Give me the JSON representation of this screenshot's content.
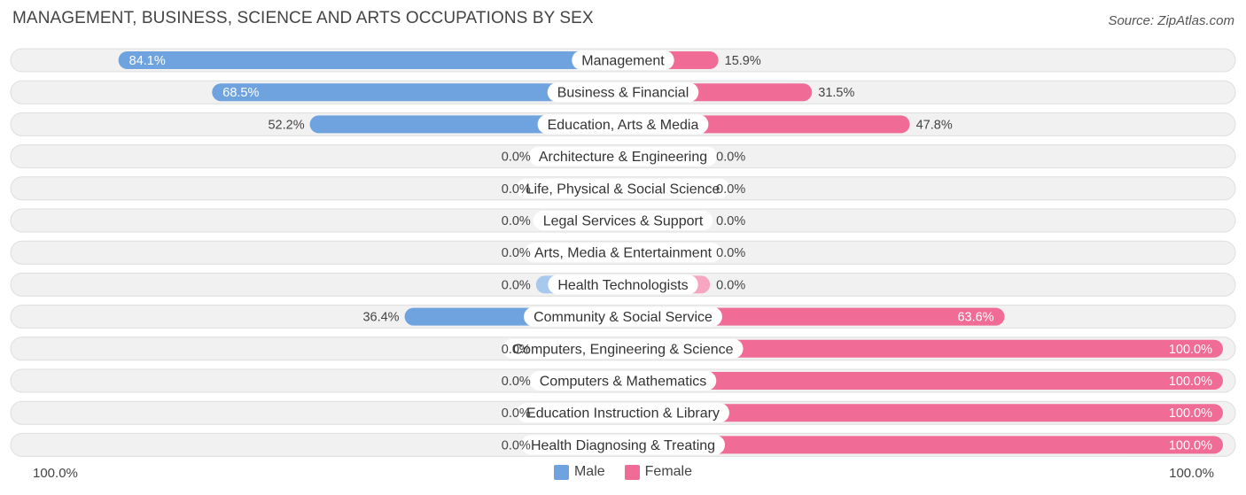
{
  "chart_data": {
    "type": "bar",
    "orientation": "diverging-horizontal",
    "title": "MANAGEMENT, BUSINESS, SCIENCE AND ARTS OCCUPATIONS BY SEX",
    "source": "Source: ZipAtlas.com",
    "categories": [
      "Management",
      "Business & Financial",
      "Education, Arts & Media",
      "Architecture & Engineering",
      "Life, Physical & Social Science",
      "Legal Services & Support",
      "Arts, Media & Entertainment",
      "Health Technologists",
      "Community & Social Service",
      "Computers, Engineering & Science",
      "Computers & Mathematics",
      "Education Instruction & Library",
      "Health Diagnosing & Treating"
    ],
    "series": [
      {
        "name": "Male",
        "color": "#6fa3e0",
        "color_light": "#a9c8ee",
        "values": [
          84.1,
          68.5,
          52.2,
          0.0,
          0.0,
          0.0,
          0.0,
          0.0,
          36.4,
          0.0,
          0.0,
          0.0,
          0.0
        ],
        "labels": [
          "84.1%",
          "68.5%",
          "52.2%",
          "0.0%",
          "0.0%",
          "0.0%",
          "0.0%",
          "0.0%",
          "36.4%",
          "0.0%",
          "0.0%",
          "0.0%",
          "0.0%"
        ]
      },
      {
        "name": "Female",
        "color": "#f06b96",
        "color_light": "#f6a6c0",
        "values": [
          15.9,
          31.5,
          47.8,
          0.0,
          0.0,
          0.0,
          0.0,
          0.0,
          63.6,
          100.0,
          100.0,
          100.0,
          100.0
        ],
        "labels": [
          "15.9%",
          "31.5%",
          "47.8%",
          "0.0%",
          "0.0%",
          "0.0%",
          "0.0%",
          "0.0%",
          "63.6%",
          "100.0%",
          "100.0%",
          "100.0%",
          "100.0%"
        ]
      }
    ],
    "xlim": [
      -100,
      100
    ],
    "axis_left_label": "100.0%",
    "axis_right_label": "100.0%",
    "legend_position": "bottom-center"
  }
}
